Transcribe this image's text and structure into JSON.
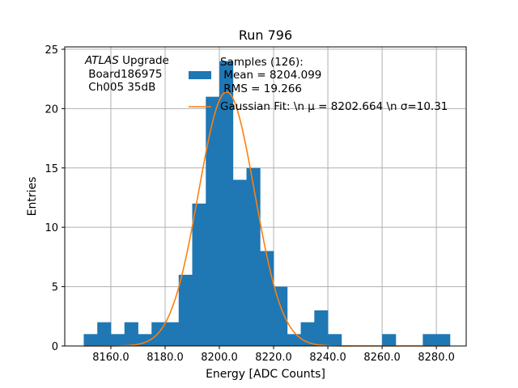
{
  "chart_data": {
    "type": "bar",
    "title": "Run 796",
    "xlabel": "Energy [ADC Counts]",
    "ylabel": "Entries",
    "xlim": [
      8143,
      8291
    ],
    "ylim": [
      0,
      25.2
    ],
    "grid": true,
    "xticks": [
      8160,
      8180,
      8200,
      8220,
      8240,
      8260,
      8280
    ],
    "xtick_labels": [
      "8160.0",
      "8180.0",
      "8200.0",
      "8220.0",
      "8240.0",
      "8260.0",
      "8280.0"
    ],
    "yticks": [
      0,
      5,
      10,
      15,
      20,
      25
    ],
    "ytick_labels": [
      "0",
      "5",
      "10",
      "15",
      "20",
      "25"
    ],
    "bin_edges": [
      8150,
      8155,
      8160,
      8165,
      8170,
      8175,
      8180,
      8185,
      8190,
      8195,
      8200,
      8205,
      8210,
      8215,
      8220,
      8225,
      8230,
      8235,
      8240,
      8245,
      8250,
      8255,
      8260,
      8265,
      8270,
      8275,
      8280,
      8285
    ],
    "counts": [
      1,
      2,
      1,
      2,
      1,
      2,
      2,
      6,
      12,
      21,
      24,
      14,
      15,
      8,
      5,
      1,
      2,
      3,
      1,
      0,
      0,
      0,
      1,
      0,
      0,
      1,
      1
    ],
    "fit": {
      "mu": 8202.664,
      "sigma": 10.31,
      "amplitude": 21.4
    },
    "annotation": {
      "italic": "ATLAS",
      "rest": " Upgrade",
      "line2": " Board186975",
      "line3": " Ch005 35dB"
    },
    "legend": {
      "position": "upper-right",
      "hist_lines": [
        "Samples (126):",
        " Mean = 8204.099",
        " RMS = 19.266"
      ],
      "fit_label": "Gaussian Fit: \\n μ = 8202.664 \\n σ=10.31"
    },
    "colors": {
      "hist": "#1f77b4",
      "fit": "#ff7f0e",
      "grid": "#b0b0b0"
    }
  }
}
